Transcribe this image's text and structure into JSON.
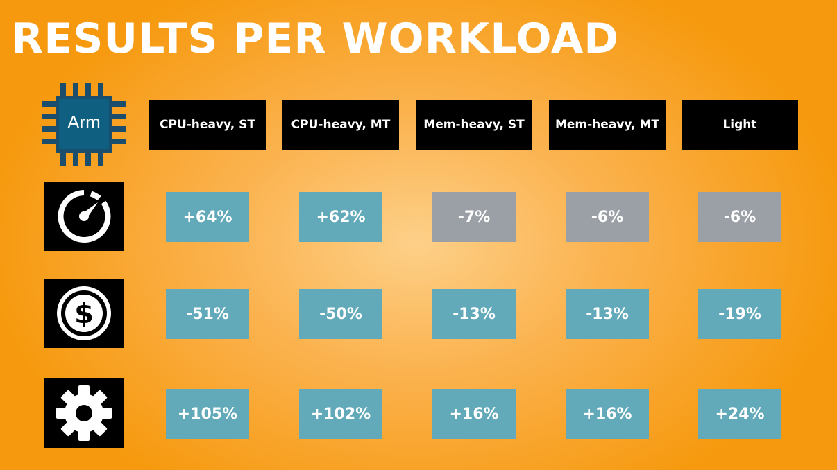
{
  "title": "RESULTS PER WORKLOAD",
  "chip_label": "Arm",
  "headers": [
    "CPU-heavy, ST",
    "CPU-heavy, MT",
    "Mem-heavy, ST",
    "Mem-heavy, MT",
    "Light"
  ],
  "rows": [
    {
      "icon": "speedometer-icon",
      "values": [
        "+64%",
        "+62%",
        "-7%",
        "-6%",
        "-6%"
      ]
    },
    {
      "icon": "dollar-icon",
      "values": [
        "-51%",
        "-50%",
        "-13%",
        "-13%",
        "-19%"
      ]
    },
    {
      "icon": "gear-icon",
      "values": [
        "+105%",
        "+102%",
        "+16%",
        "+16%",
        "+24%"
      ]
    }
  ],
  "colors": {
    "accent_blue": "#62aab9",
    "neutral_gray": "#9ba0a7",
    "header_bg": "#000000",
    "background": "#f6990e"
  }
}
